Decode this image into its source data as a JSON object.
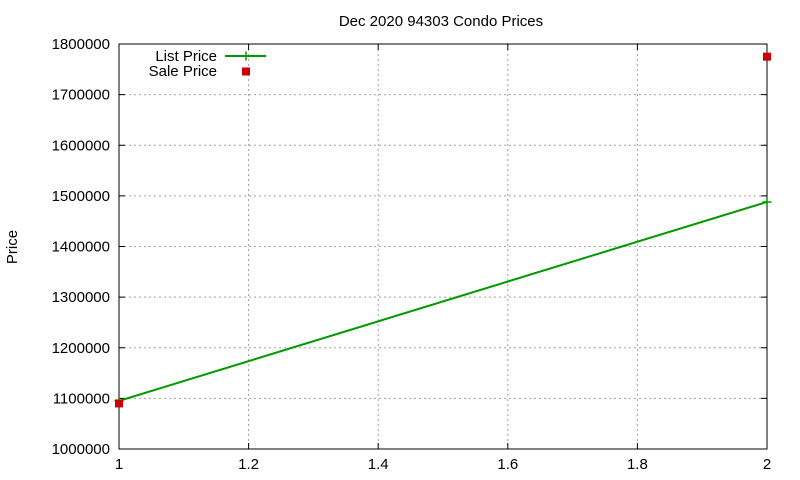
{
  "chart_data": {
    "type": "line",
    "title": "Dec 2020 94303 Condo Prices",
    "xlabel": "",
    "ylabel": "Price",
    "xlim": [
      1,
      2
    ],
    "ylim": [
      1000000,
      1800000
    ],
    "x_ticks": [
      "1",
      "1.2",
      "1.4",
      "1.6",
      "1.8",
      "2"
    ],
    "y_ticks": [
      "1000000",
      "1100000",
      "1200000",
      "1300000",
      "1400000",
      "1500000",
      "1600000",
      "1700000",
      "1800000"
    ],
    "grid": true,
    "legend_position": "top-left",
    "series": [
      {
        "name": "List Price",
        "style": "linespoints",
        "color": "#009900",
        "x": [
          1,
          2
        ],
        "y": [
          1095000,
          1488000
        ]
      },
      {
        "name": "Sale Price",
        "style": "points",
        "color": "#cc0000",
        "x": [
          1,
          2
        ],
        "y": [
          1090000,
          1775000
        ]
      }
    ]
  }
}
